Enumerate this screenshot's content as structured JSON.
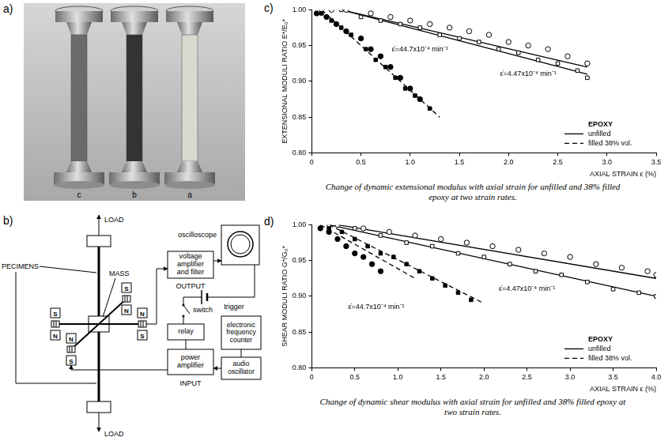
{
  "photo": {
    "letter": "a)",
    "specimen_labels": [
      "c",
      "b",
      "a"
    ]
  },
  "diagram": {
    "letter": "b)",
    "load_top": "LOAD",
    "load_bottom": "LOAD",
    "mass": "MASS",
    "specimens": "PECIMENS",
    "magnet_poles": [
      "S",
      "N",
      "N",
      "S",
      "S",
      "N",
      "N",
      "S"
    ],
    "voltage_amplifier": "voltage amplifier and filter",
    "oscilloscope": "oscilloscope",
    "output": "OUTPUT",
    "trigger": "trigger",
    "switch": "switch",
    "relay": "relay",
    "power_amplifier": "power amplifier",
    "input": "INPUT",
    "frequency_counter": "electronic frequency counter",
    "audio_oscillator": "audio oscillator"
  },
  "chart_data": [
    {
      "letter": "c)",
      "type": "scatter",
      "caption": "Change of dynamic extensional modulus with axial strain for unfilled and 38% filled epoxy at two strain rates.",
      "x_label": "AXIAL STRAIN ε (%)",
      "y_label": "EXTENSIONAL MODULI RATIO E*/E₀*",
      "xlim": [
        0,
        3.5
      ],
      "xticks": [
        0,
        0.5,
        {
          "value": 1,
          "label": "1.0"
        },
        1.5,
        {
          "value": 2,
          "label": "2.0"
        },
        2.5,
        {
          "value": 3,
          "label": "3.0"
        },
        3.5
      ],
      "ylim": [
        0.8,
        1.0
      ],
      "yticks": [
        {
          "value": 0.8,
          "label": "0.80"
        },
        0.85,
        {
          "value": 0.9,
          "label": "0.90"
        },
        0.95,
        {
          "value": 1,
          "label": "1.00"
        }
      ],
      "grid": false,
      "legend": "lower right",
      "legend_title": "EPOXY",
      "annotations": [
        {
          "text": "ε̇=44.7x10⁻⁴ min⁻¹",
          "x": 1.1,
          "y": 0.945
        },
        {
          "text": "ε̇=4.47x10⁻⁴ min⁻¹",
          "x": 2.2,
          "y": 0.91
        }
      ],
      "series": [
        {
          "type": "scatter",
          "marker": "circle_open",
          "color": "#000000",
          "x": [
            0.2,
            0.35,
            0.6,
            0.8,
            1.0,
            1.2,
            1.4,
            1.6,
            1.8,
            2.0,
            2.2,
            2.4,
            2.6,
            2.8
          ],
          "values": [
            1.0,
            1.0,
            0.995,
            0.99,
            0.985,
            0.98,
            0.975,
            0.97,
            0.965,
            0.955,
            0.95,
            0.945,
            0.935,
            0.925
          ]
        },
        {
          "type": "scatter",
          "marker": "square_open",
          "color": "#000000",
          "x": [
            0.1,
            0.3,
            0.5,
            0.7,
            0.9,
            1.1,
            1.3,
            1.5,
            1.7,
            1.9,
            2.1,
            2.3,
            2.5,
            2.7,
            2.8
          ],
          "values": [
            1.0,
            1.0,
            0.99,
            0.985,
            0.98,
            0.975,
            0.965,
            0.96,
            0.955,
            0.945,
            0.94,
            0.93,
            0.925,
            0.915,
            0.905
          ]
        },
        {
          "type": "scatter",
          "marker": "circle",
          "color": "#000000",
          "x": [
            0.05,
            0.15,
            0.25,
            0.35,
            0.5,
            0.6,
            0.7,
            0.8,
            0.9,
            1.0,
            1.1
          ],
          "values": [
            0.995,
            0.99,
            0.98,
            0.97,
            0.96,
            0.945,
            0.935,
            0.92,
            0.905,
            0.89,
            0.875
          ]
        },
        {
          "type": "scatter",
          "marker": "square",
          "color": "#000000",
          "x": [
            0.1,
            0.2,
            0.3,
            0.4,
            0.55,
            0.65,
            0.75,
            0.85,
            0.95,
            1.05,
            1.2
          ],
          "values": [
            0.995,
            0.985,
            0.975,
            0.965,
            0.945,
            0.93,
            0.92,
            0.905,
            0.89,
            0.88,
            0.862
          ]
        },
        {
          "type": "line",
          "name": "unfilled",
          "line_style": "solid",
          "marker": "none",
          "color": "#000000",
          "x": [
            0.3,
            2.8
          ],
          "values": [
            1.0,
            0.92
          ]
        },
        {
          "type": "line",
          "line_style": "solid",
          "marker": "none",
          "color": "#000000",
          "x": [
            0.3,
            2.8
          ],
          "values": [
            1.0,
            0.91
          ]
        },
        {
          "type": "line",
          "name": "filled 38% vol.",
          "line_style": "dashed",
          "marker": "none",
          "color": "#000000",
          "x": [
            0.1,
            1.3
          ],
          "values": [
            1.0,
            0.85
          ]
        }
      ]
    },
    {
      "letter": "d)",
      "type": "scatter",
      "caption": "Change of dynamic shear modulus with axial strain for unfilled and 38% filled epoxy at two strain rates.",
      "x_label": "AXIAL STRAIN ε (%)",
      "y_label": "SHEAR MODULI RATIO G*/G₀*",
      "xlim": [
        0,
        4.0
      ],
      "xticks": [
        0,
        0.5,
        {
          "value": 1,
          "label": "1.0"
        },
        1.5,
        {
          "value": 2,
          "label": "2.0"
        },
        2.5,
        {
          "value": 3,
          "label": "3.0"
        },
        3.5,
        {
          "value": 4,
          "label": "4.0"
        }
      ],
      "ylim": [
        0.8,
        1.0
      ],
      "yticks": [
        {
          "value": 0.8,
          "label": "0.80"
        },
        0.85,
        {
          "value": 0.9,
          "label": "0.90"
        },
        0.95,
        {
          "value": 1,
          "label": "1.00"
        }
      ],
      "grid": false,
      "legend": "lower right",
      "legend_title": "EPOXY",
      "annotations": [
        {
          "text": "ε̇=44.7x10⁻⁴ min⁻¹",
          "x": 0.75,
          "y": 0.885
        },
        {
          "text": "ε̇=4.47x10⁻⁴ min⁻¹",
          "x": 2.5,
          "y": 0.91
        }
      ],
      "series": [
        {
          "type": "scatter",
          "marker": "circle_open",
          "color": "#000000",
          "x": [
            0.3,
            0.6,
            0.9,
            1.2,
            1.5,
            1.8,
            2.1,
            2.4,
            2.7,
            3.0,
            3.3,
            3.6,
            3.9,
            4.0
          ],
          "values": [
            1.0,
            0.995,
            0.99,
            0.985,
            0.98,
            0.975,
            0.97,
            0.965,
            0.96,
            0.955,
            0.945,
            0.94,
            0.935,
            0.93
          ]
        },
        {
          "type": "scatter",
          "marker": "square_open",
          "color": "#000000",
          "x": [
            0.2,
            0.5,
            0.8,
            1.1,
            1.4,
            1.7,
            2.0,
            2.3,
            2.6,
            2.9,
            3.2,
            3.5,
            3.8,
            4.0
          ],
          "values": [
            1.0,
            0.995,
            0.985,
            0.975,
            0.97,
            0.96,
            0.955,
            0.945,
            0.935,
            0.93,
            0.92,
            0.91,
            0.905,
            0.9
          ]
        },
        {
          "type": "scatter",
          "marker": "circle",
          "color": "#000000",
          "x": [
            0.1,
            0.2,
            0.3,
            0.4,
            0.5,
            0.6,
            0.7,
            0.8
          ],
          "values": [
            0.995,
            0.99,
            0.98,
            0.97,
            0.96,
            0.955,
            0.945,
            0.935
          ]
        },
        {
          "type": "scatter",
          "marker": "square",
          "color": "#000000",
          "x": [
            0.2,
            0.35,
            0.5,
            0.65,
            0.8,
            0.95,
            1.1,
            1.25,
            1.4,
            1.55,
            1.7,
            1.85
          ],
          "values": [
            0.995,
            0.99,
            0.98,
            0.97,
            0.96,
            0.955,
            0.945,
            0.935,
            0.925,
            0.915,
            0.905,
            0.895
          ]
        },
        {
          "type": "line",
          "name": "unfilled",
          "line_style": "solid",
          "marker": "none",
          "color": "#000000",
          "x": [
            0.3,
            4.0
          ],
          "values": [
            1.0,
            0.925
          ]
        },
        {
          "type": "line",
          "line_style": "solid",
          "marker": "none",
          "color": "#000000",
          "x": [
            0.2,
            4.0
          ],
          "values": [
            1.0,
            0.9
          ]
        },
        {
          "type": "line",
          "name": "filled 38% vol.",
          "line_style": "dashed",
          "marker": "none",
          "color": "#000000",
          "x": [
            0.1,
            1.2
          ],
          "values": [
            1.0,
            0.925
          ]
        },
        {
          "type": "line",
          "line_style": "dashed",
          "marker": "none",
          "color": "#000000",
          "x": [
            0.2,
            2.0
          ],
          "values": [
            1.0,
            0.89
          ]
        }
      ]
    }
  ]
}
